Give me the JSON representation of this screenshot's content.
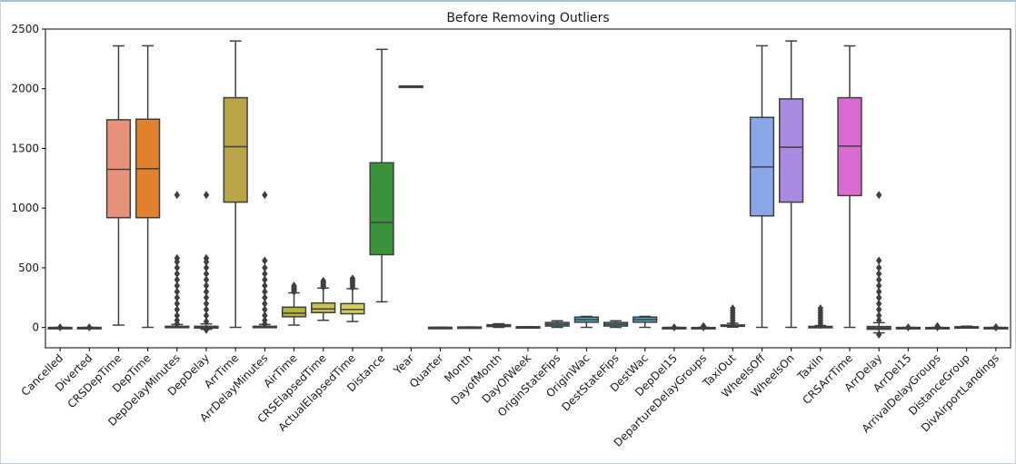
{
  "chart_data": {
    "type": "box",
    "title": "Before Removing Outliers",
    "xlabel": "",
    "ylabel": "",
    "ylim": [
      -170,
      2500
    ],
    "yticks": [
      0,
      500,
      1000,
      1500,
      2000,
      2500
    ],
    "grid": false,
    "categories": [
      "Cancelled",
      "Diverted",
      "CRSDepTime",
      "DepTime",
      "DepDelayMinutes",
      "DepDelay",
      "ArrTime",
      "ArrDelayMinutes",
      "AirTime",
      "CRSElapsedTime",
      "ActualElapsedTime",
      "Distance",
      "Year",
      "Quarter",
      "Month",
      "DayofMonth",
      "DayOfWeek",
      "OriginStateFips",
      "OriginWac",
      "DestStateFips",
      "DestWac",
      "DepDel15",
      "DepartureDelayGroups",
      "TaxiOut",
      "WheelsOff",
      "WheelsOn",
      "TaxiIn",
      "CRSArrTime",
      "ArrDelay",
      "ArrDel15",
      "ArrivalDelayGroups",
      "DistanceGroup",
      "DivAirportLandings"
    ],
    "boxes": [
      {
        "name": "Cancelled",
        "color": "#3274a1",
        "min": 0,
        "q1": 0,
        "median": 0,
        "q3": 0,
        "max": 0,
        "outliers": [
          1
        ]
      },
      {
        "name": "Diverted",
        "color": "#e1812c",
        "min": 0,
        "q1": 0,
        "median": 0,
        "q3": 0,
        "max": 0,
        "outliers": [
          1
        ]
      },
      {
        "name": "CRSDepTime",
        "color": "#e8927c",
        "min": 20,
        "q1": 920,
        "median": 1325,
        "q3": 1740,
        "max": 2359,
        "outliers": []
      },
      {
        "name": "DepTime",
        "color": "#e1812c",
        "min": 1,
        "q1": 920,
        "median": 1330,
        "q3": 1745,
        "max": 2360,
        "outliers": []
      },
      {
        "name": "DepDelayMinutes",
        "color": "#3a923a",
        "min": 0,
        "q1": 0,
        "median": 0,
        "q3": 10,
        "max": 25,
        "outliers": [
          30,
          60,
          100,
          150,
          200,
          250,
          300,
          350,
          400,
          450,
          500,
          550,
          580,
          1110
        ]
      },
      {
        "name": "DepDelay",
        "color": "#c03d3e",
        "min": -15,
        "q1": -5,
        "median": 0,
        "q3": 10,
        "max": 30,
        "outliers": [
          -20,
          50,
          100,
          150,
          200,
          250,
          300,
          350,
          400,
          450,
          500,
          550,
          580,
          1110
        ]
      },
      {
        "name": "ArrTime",
        "color": "#b8a545",
        "min": 1,
        "q1": 1050,
        "median": 1515,
        "q3": 1925,
        "max": 2400,
        "outliers": []
      },
      {
        "name": "ArrDelayMinutes",
        "color": "#8c613c",
        "min": 0,
        "q1": 0,
        "median": 0,
        "q3": 10,
        "max": 25,
        "outliers": [
          30,
          60,
          100,
          150,
          200,
          250,
          300,
          350,
          400,
          450,
          500,
          560,
          1110
        ]
      },
      {
        "name": "AirTime",
        "color": "#b3b23a",
        "min": 20,
        "q1": 90,
        "median": 120,
        "q3": 170,
        "max": 290,
        "outliers": [
          300,
          310,
          320,
          330,
          340,
          350
        ]
      },
      {
        "name": "CRSElapsedTime",
        "color": "#c8c449",
        "min": 60,
        "q1": 125,
        "median": 155,
        "q3": 205,
        "max": 330,
        "outliers": [
          340,
          350,
          360,
          370,
          380,
          390
        ]
      },
      {
        "name": "ActualElapsedTime",
        "color": "#d6d05a",
        "min": 50,
        "q1": 115,
        "median": 150,
        "q3": 200,
        "max": 325,
        "outliers": [
          335,
          350,
          365,
          380,
          395,
          410
        ]
      },
      {
        "name": "Distance",
        "color": "#3a923a",
        "min": 215,
        "q1": 610,
        "median": 880,
        "q3": 1380,
        "max": 2330,
        "outliers": []
      },
      {
        "name": "Year",
        "color": "#3a923a",
        "min": 2022,
        "q1": 2022,
        "median": 2022,
        "q3": 2022,
        "max": 2022,
        "outliers": []
      },
      {
        "name": "Quarter",
        "color": "#3a923a",
        "min": 1,
        "q1": 1,
        "median": 1,
        "q3": 1,
        "max": 1,
        "outliers": []
      },
      {
        "name": "Month",
        "color": "#3a923a",
        "min": 1,
        "q1": 2,
        "median": 3,
        "q3": 4,
        "max": 4,
        "outliers": []
      },
      {
        "name": "DayofMonth",
        "color": "#32a080",
        "min": 1,
        "q1": 8,
        "median": 16,
        "q3": 23,
        "max": 31,
        "outliers": []
      },
      {
        "name": "DayOfWeek",
        "color": "#3a923a",
        "min": 1,
        "q1": 2,
        "median": 4,
        "q3": 6,
        "max": 7,
        "outliers": []
      },
      {
        "name": "OriginStateFips",
        "color": "#3a9bb0",
        "min": 1,
        "q1": 12,
        "median": 27,
        "q3": 42,
        "max": 56,
        "outliers": []
      },
      {
        "name": "OriginWac",
        "color": "#4aa8c8",
        "min": 1,
        "q1": 44,
        "median": 66,
        "q3": 87,
        "max": 93,
        "outliers": []
      },
      {
        "name": "DestStateFips",
        "color": "#3a9bb0",
        "min": 1,
        "q1": 12,
        "median": 27,
        "q3": 42,
        "max": 56,
        "outliers": []
      },
      {
        "name": "DestWac",
        "color": "#4aa8c8",
        "min": 1,
        "q1": 44,
        "median": 66,
        "q3": 87,
        "max": 93,
        "outliers": []
      },
      {
        "name": "DepDel15",
        "color": "#3a923a",
        "min": 0,
        "q1": 0,
        "median": 0,
        "q3": 0,
        "max": 0,
        "outliers": [
          1
        ]
      },
      {
        "name": "DepartureDelayGroups",
        "color": "#5a8fd6",
        "min": -2,
        "q1": -1,
        "median": -1,
        "q3": 0,
        "max": 1,
        "outliers": [
          2,
          4,
          6,
          8,
          10,
          12
        ]
      },
      {
        "name": "TaxiOut",
        "color": "#6f95d8",
        "min": 3,
        "q1": 12,
        "median": 15,
        "q3": 21,
        "max": 35,
        "outliers": [
          40,
          60,
          80,
          100,
          120,
          140,
          160
        ]
      },
      {
        "name": "WheelsOff",
        "color": "#8aa5e8",
        "min": 1,
        "q1": 935,
        "median": 1345,
        "q3": 1760,
        "max": 2360,
        "outliers": []
      },
      {
        "name": "WheelsOn",
        "color": "#a88ae0",
        "min": 1,
        "q1": 1050,
        "median": 1510,
        "q3": 1915,
        "max": 2400,
        "outliers": []
      },
      {
        "name": "TaxiIn",
        "color": "#b77dd4",
        "min": 1,
        "q1": 4,
        "median": 6,
        "q3": 9,
        "max": 16,
        "outliers": [
          20,
          40,
          60,
          80,
          100,
          120,
          140,
          160
        ]
      },
      {
        "name": "CRSArrTime",
        "color": "#d86ad0",
        "min": 1,
        "q1": 1105,
        "median": 1520,
        "q3": 1925,
        "max": 2359,
        "outliers": []
      },
      {
        "name": "ArrDelay",
        "color": "#d860b8",
        "min": -45,
        "q1": -15,
        "median": -5,
        "q3": 8,
        "max": 40,
        "outliers": [
          -60,
          60,
          100,
          150,
          200,
          250,
          300,
          350,
          400,
          450,
          500,
          560,
          1110
        ]
      },
      {
        "name": "ArrDel15",
        "color": "#d860a8",
        "min": 0,
        "q1": 0,
        "median": 0,
        "q3": 0,
        "max": 0,
        "outliers": [
          1
        ]
      },
      {
        "name": "ArrivalDelayGroups",
        "color": "#d86a98",
        "min": -2,
        "q1": -1,
        "median": -1,
        "q3": 0,
        "max": 1,
        "outliers": [
          2,
          4,
          6,
          8,
          10,
          12
        ]
      },
      {
        "name": "DistanceGroup",
        "color": "#d86a88",
        "min": 1,
        "q1": 3,
        "median": 4,
        "q3": 6,
        "max": 11,
        "outliers": []
      },
      {
        "name": "DivAirportLandings",
        "color": "#d86a78",
        "min": 0,
        "q1": 0,
        "median": 0,
        "q3": 0,
        "max": 0,
        "outliers": [
          1,
          2
        ]
      }
    ]
  }
}
